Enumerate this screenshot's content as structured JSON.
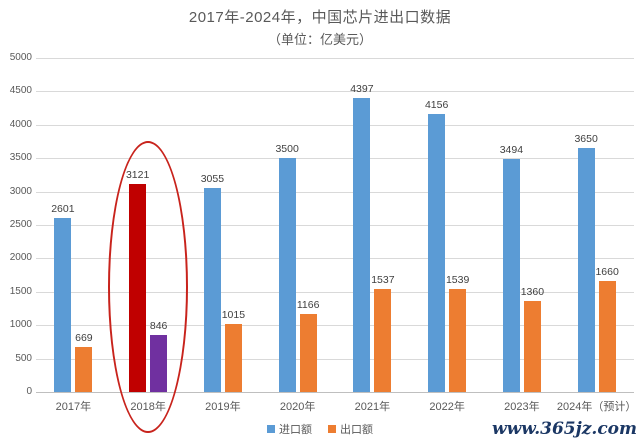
{
  "chart_data": {
    "type": "bar",
    "title": "2017年-2024年，中国芯片进出口数据",
    "subtitle": "（单位：亿美元）",
    "categories": [
      "2017年",
      "2018年",
      "2019年",
      "2020年",
      "2021年",
      "2022年",
      "2023年",
      "2024年（预计）"
    ],
    "series": [
      {
        "name": "进口额",
        "values": [
          2601,
          3121,
          3055,
          3500,
          4397,
          4156,
          3494,
          3650
        ],
        "color": "#5B9BD5",
        "highlight_color": "#C00000"
      },
      {
        "name": "出口额",
        "values": [
          669,
          846,
          1015,
          1166,
          1537,
          1539,
          1360,
          1660
        ],
        "color": "#ED7D31",
        "highlight_color": "#7030A0"
      }
    ],
    "highlighted_category_index": 1,
    "highlight": {
      "shape": "ellipse",
      "color": "#C8231C",
      "category": "2018年"
    },
    "ylim": [
      0,
      5000
    ],
    "ytick_step": 500,
    "grid": true,
    "data_labels": true,
    "legend_position": "bottom",
    "axis_label_color": "#595959",
    "data_label_color": "#404040",
    "gridline_color": "#D9D9D9",
    "axis_line_color": "#BFBFBF"
  },
  "watermark": {
    "text": "www.365jz.com",
    "color": "#1B3764"
  }
}
